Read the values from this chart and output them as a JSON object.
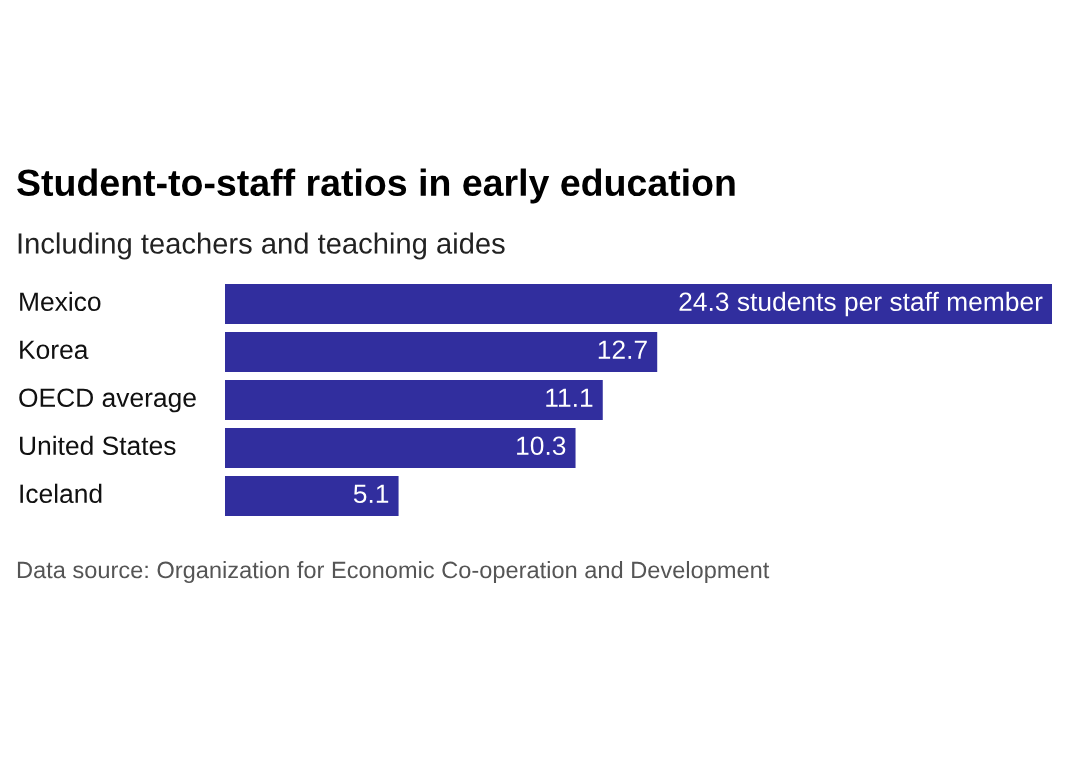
{
  "chart_data": {
    "type": "bar",
    "orientation": "horizontal",
    "title": "Student-to-staff ratios in early education",
    "subtitle": "Including teachers and teaching aides",
    "categories": [
      "Mexico",
      "Korea",
      "OECD average",
      "United States",
      "Iceland"
    ],
    "values": [
      24.3,
      12.7,
      11.1,
      10.3,
      5.1
    ],
    "value_labels": [
      "24.3 students per staff member",
      "12.7",
      "11.1",
      "10.3",
      "5.1"
    ],
    "color": "#312e9e",
    "annotations": [
      "Data source: Organization for Economic Co-operation and Development"
    ]
  }
}
